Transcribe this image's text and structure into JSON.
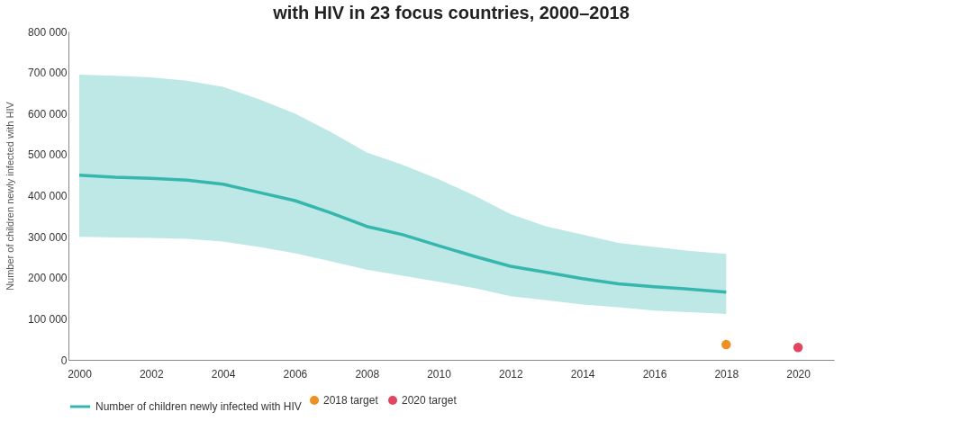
{
  "chart_data": {
    "type": "line",
    "title": "with HIV in 23 focus countries, 2000–2018",
    "ylabel": "Number of children newly infected with HIV",
    "x": [
      2000,
      2001,
      2002,
      2003,
      2004,
      2005,
      2006,
      2007,
      2008,
      2009,
      2010,
      2011,
      2012,
      2013,
      2014,
      2015,
      2016,
      2017,
      2018
    ],
    "series": [
      {
        "name": "Number of children newly infected with HIV",
        "color": "#35b7ad",
        "values": [
          450000,
          445000,
          442000,
          438000,
          428000,
          408000,
          388000,
          358000,
          325000,
          305000,
          278000,
          252000,
          228000,
          213000,
          198000,
          185000,
          178000,
          172000,
          165000
        ],
        "upper": [
          695000,
          692000,
          688000,
          680000,
          665000,
          635000,
          600000,
          555000,
          505000,
          475000,
          440000,
          400000,
          355000,
          325000,
          305000,
          285000,
          275000,
          265000,
          258000
        ],
        "lower": [
          300000,
          298000,
          297000,
          295000,
          288000,
          275000,
          260000,
          240000,
          220000,
          205000,
          190000,
          175000,
          155000,
          145000,
          135000,
          128000,
          120000,
          116000,
          112000
        ]
      },
      {
        "name": "2018 target",
        "type": "scatter",
        "marker": "circle",
        "color": "#ee8f21",
        "x": [
          2018
        ],
        "values": [
          37000
        ]
      },
      {
        "name": "2020 target",
        "type": "scatter",
        "marker": "circle",
        "color": "#e2465e",
        "x": [
          2020
        ],
        "values": [
          30000
        ]
      }
    ],
    "xlim": [
      1999.7,
      2021
    ],
    "xticks": [
      2000,
      2002,
      2004,
      2006,
      2008,
      2010,
      2012,
      2014,
      2016,
      2018,
      2020
    ],
    "ylim": [
      0,
      800000
    ],
    "yticks": [
      0,
      {
        "value": 100000,
        "label": "100 000"
      },
      {
        "value": 200000,
        "label": "200 000"
      },
      {
        "value": 300000,
        "label": "300 000"
      },
      {
        "value": 400000,
        "label": "400 000"
      },
      {
        "value": 500000,
        "label": "500 000"
      },
      {
        "value": 600000,
        "label": "600 000"
      },
      {
        "value": 700000,
        "label": "700 000"
      },
      {
        "value": 800000,
        "label": "800 000"
      }
    ],
    "legend": "bottom",
    "grid": false,
    "marker": "none",
    "line_style": "solid"
  }
}
